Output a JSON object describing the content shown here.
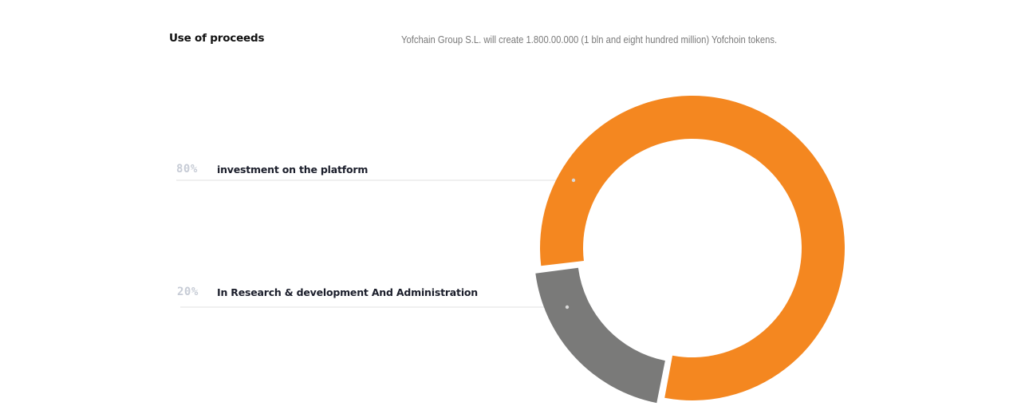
{
  "header": {
    "title": "Use of proceeds",
    "intro": "Yofchain Group S.L. will create 1.800.00.000 (1 bln and eight hundred million) Yofchoin tokens."
  },
  "chart_data": {
    "type": "pie",
    "title": "Use of proceeds",
    "labels": [
      "investment on the platform",
      "In Research & development And Administration"
    ],
    "values": [
      80,
      20
    ],
    "display_values": [
      "80%",
      "20%"
    ],
    "colors": [
      "#f48720",
      "#7a7a79"
    ],
    "style": "donut"
  },
  "colors": {
    "accent": "#f48720",
    "secondary": "#7a7a79",
    "percent_text": "#c7ccd6",
    "label_text": "#1b1e2b",
    "leader_line": "#e0e0e0"
  }
}
